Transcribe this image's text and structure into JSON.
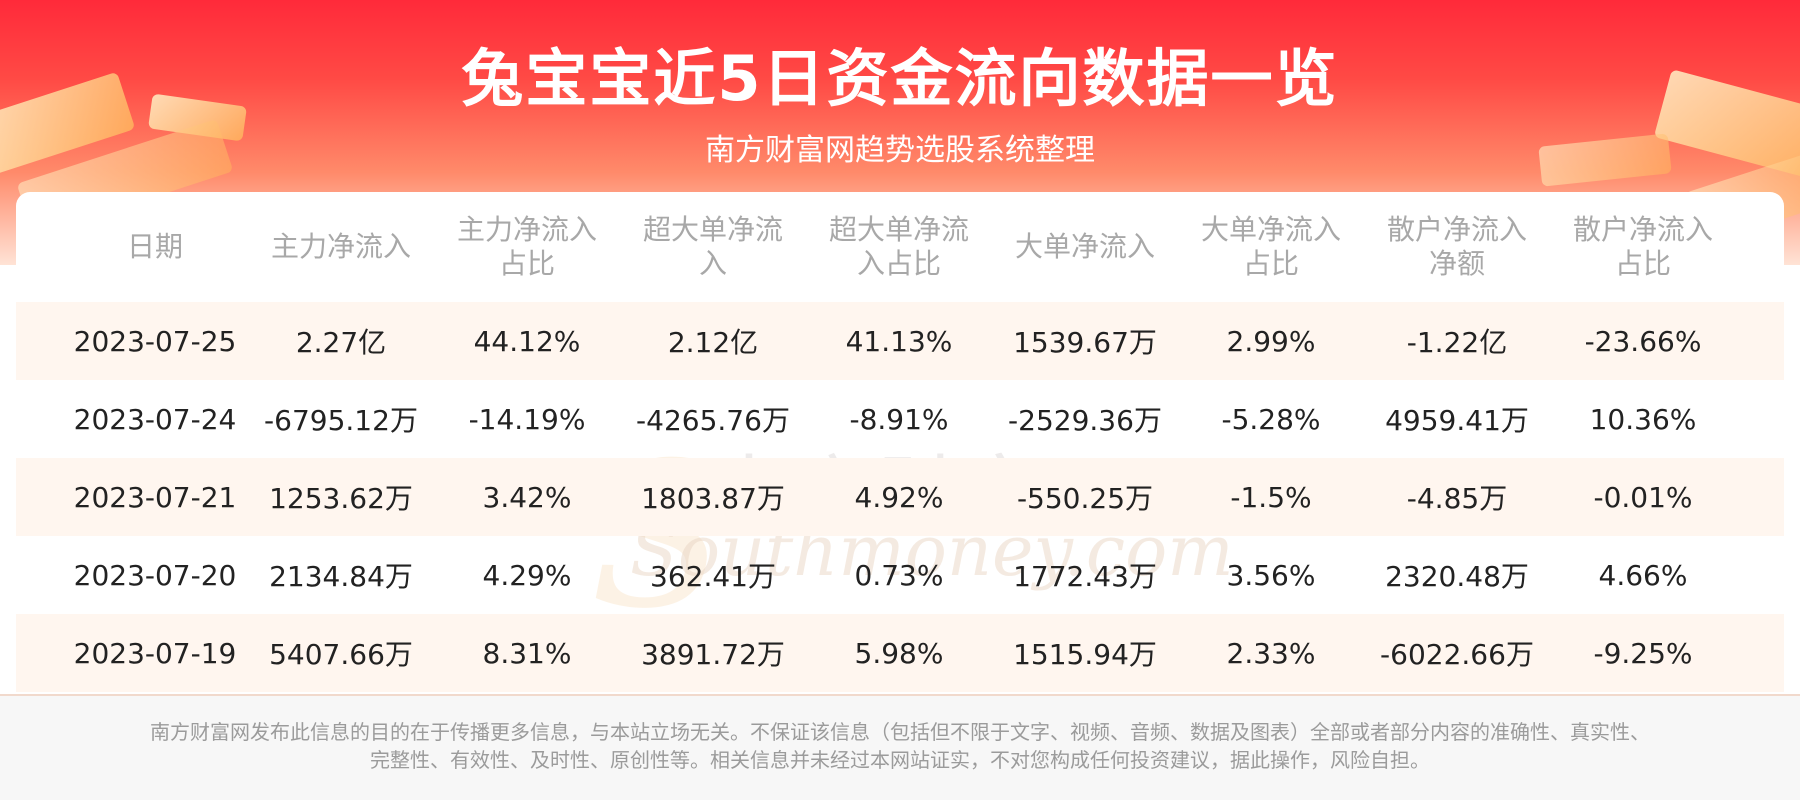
{
  "header": {
    "title": "兔宝宝近5日资金流向数据一览",
    "subtitle": "南方财富网趋势选股系统整理"
  },
  "watermark": {
    "cn": "南方财富网",
    "en": "Southmoney.com"
  },
  "table": {
    "columns": [
      [
        "日期"
      ],
      [
        "主力净流入"
      ],
      [
        "主力净流入",
        "占比"
      ],
      [
        "超大单净流",
        "入"
      ],
      [
        "超大单净流",
        "入占比"
      ],
      [
        "大单净流入"
      ],
      [
        "大单净流入",
        "占比"
      ],
      [
        "散户净流入",
        "净额"
      ],
      [
        "散户净流入",
        "占比"
      ]
    ],
    "rows": [
      [
        "2023-07-25",
        "2.27亿",
        "44.12%",
        "2.12亿",
        "41.13%",
        "1539.67万",
        "2.99%",
        "-1.22亿",
        "-23.66%"
      ],
      [
        "2023-07-24",
        "-6795.12万",
        "-14.19%",
        "-4265.76万",
        "-8.91%",
        "-2529.36万",
        "-5.28%",
        "4959.41万",
        "10.36%"
      ],
      [
        "2023-07-21",
        "1253.62万",
        "3.42%",
        "1803.87万",
        "4.92%",
        "-550.25万",
        "-1.5%",
        "-4.85万",
        "-0.01%"
      ],
      [
        "2023-07-20",
        "2134.84万",
        "4.29%",
        "362.41万",
        "0.73%",
        "1772.43万",
        "3.56%",
        "2320.48万",
        "4.66%"
      ],
      [
        "2023-07-19",
        "5407.66万",
        "8.31%",
        "3891.72万",
        "5.98%",
        "1515.94万",
        "2.33%",
        "-6022.66万",
        "-9.25%"
      ]
    ]
  },
  "footer": {
    "line1": "南方财富网发布此信息的目的在于传播更多信息，与本站立场无关。不保证该信息（包括但不限于文字、视频、音频、数据及图表）全部或者部分内容的准确性、真实性、",
    "line2": "完整性、有效性、及时性、原创性等。相关信息并未经过本网站证实，不对您构成任何投资建议，据此操作，风险自担。"
  },
  "colors": {
    "banner_red": "#ff2a3a",
    "row_alt": "#fff6ef",
    "header_text": "#a8a8a8"
  }
}
